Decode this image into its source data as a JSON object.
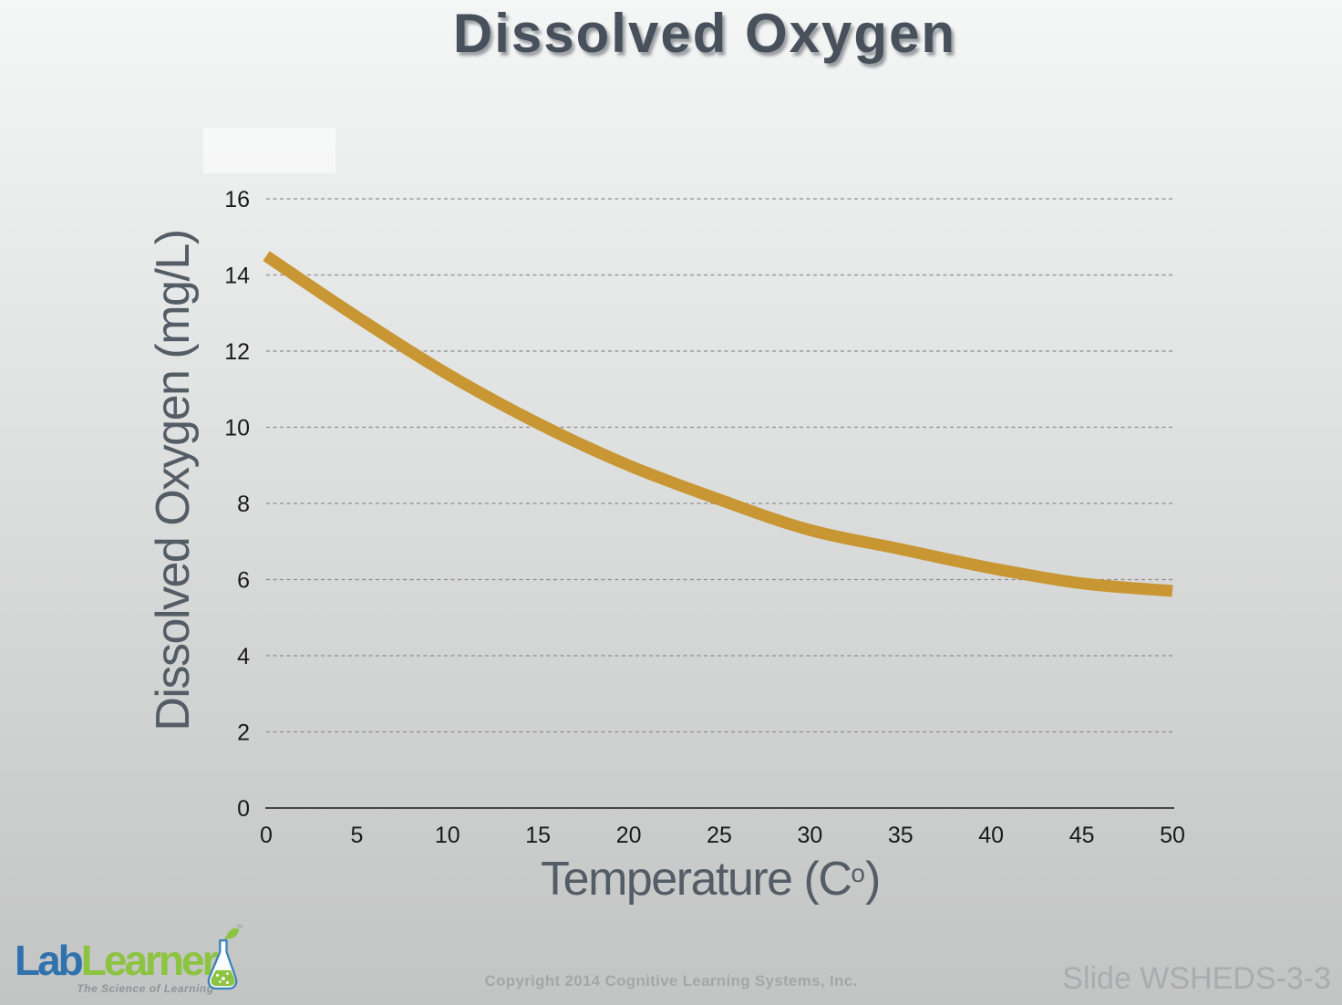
{
  "slide": {
    "title": "Dissolved Oxygen"
  },
  "chart_data": {
    "type": "line",
    "title": "Dissolved Oxygen",
    "x": [
      0,
      5,
      10,
      15,
      20,
      25,
      30,
      35,
      40,
      45,
      50
    ],
    "series": [
      {
        "name": "Dissolved Oxygen (mg/L)",
        "values": [
          14.5,
          12.9,
          11.4,
          10.1,
          9.0,
          8.1,
          7.3,
          6.8,
          6.3,
          5.9,
          5.7
        ]
      }
    ],
    "xlabel": "Temperature (Co)",
    "ylabel": "Dissolved Oxygen (mg/L)",
    "xlim": [
      0,
      50
    ],
    "ylim": [
      0,
      16
    ],
    "x_ticks": [
      0,
      5,
      10,
      15,
      20,
      25,
      30,
      35,
      40,
      45,
      50
    ],
    "y_ticks": [
      0,
      2,
      4,
      6,
      8,
      10,
      12,
      14,
      16
    ],
    "grid": "horizontal-dashed",
    "legend": "none"
  },
  "axes": {
    "y_title": "Dissolved Oxygen (mg/L)",
    "x_title_pre": "Temperature (C",
    "x_title_sup": "o",
    "x_title_post": ")"
  },
  "footer": {
    "logo_part1": "Lab",
    "logo_part2": "Learner",
    "logo_tm": "™",
    "logo_tagline": "The Science of Learning",
    "copyright": "Copyright 2014 Cognitive Learning Systems, Inc.",
    "slide_label": "Slide WSHEDS-3-3"
  },
  "colors": {
    "curve": "#C89734",
    "grid": "#8e8e8e",
    "axis_line": "#1b1b1b",
    "tick_text": "#1a1a1a",
    "axis_title": "#545d66",
    "title": "#47505b",
    "logo_blue": "#2f72ad",
    "logo_green": "#8cc341",
    "copyright_text": "#a6a6a6",
    "slide_label_text": "#a9adad"
  }
}
